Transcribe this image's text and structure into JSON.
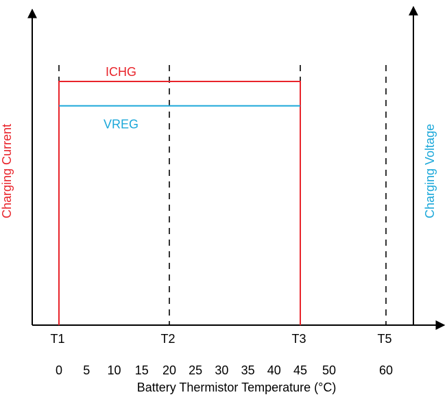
{
  "chart_data": {
    "type": "line",
    "xlabel": "Battery Thermistor Temperature (°C)",
    "ylabel_left": "Charging Current",
    "ylabel_right": "Charging Voltage",
    "x_ticks": [
      0,
      5,
      10,
      15,
      20,
      25,
      30,
      35,
      40,
      45,
      50,
      60
    ],
    "thresholds": [
      {
        "label": "T1",
        "x": 0
      },
      {
        "label": "T2",
        "x": 20
      },
      {
        "label": "T3",
        "x": 45
      },
      {
        "label": "T5",
        "x": 60
      }
    ],
    "series": [
      {
        "name": "ICHG",
        "color": "#e8232a",
        "x_start": 0,
        "x_end": 45,
        "level": 1.0
      },
      {
        "name": "VREG",
        "color": "#1aa7d9",
        "x_start": 0,
        "x_end": 45,
        "level": 0.9
      }
    ],
    "colors": {
      "current": "#e8232a",
      "voltage": "#1aa7d9",
      "axis": "#000000"
    }
  }
}
